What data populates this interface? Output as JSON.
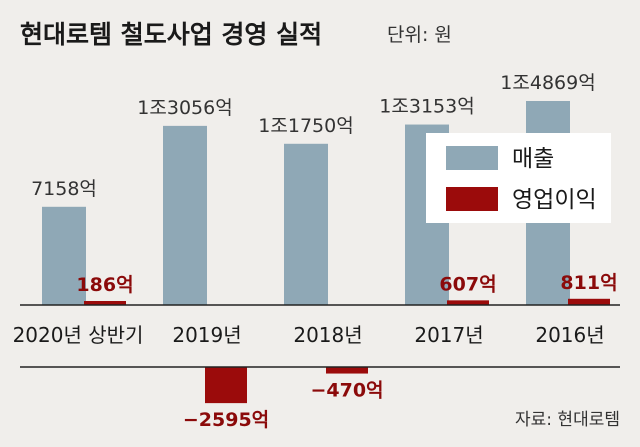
{
  "chart_data": {
    "type": "bar",
    "title": "현대로템 철도사업 경영 실적",
    "unit": "단위: 원",
    "categories": [
      "2020년 상반기",
      "2019년",
      "2018년",
      "2017년",
      "2016년"
    ],
    "series": [
      {
        "name": "매출",
        "color": "#8fa8b6",
        "values": [
          7158,
          13056,
          11750,
          13153,
          14869
        ],
        "labels": [
          "7158억",
          "1조3056억",
          "1조1750억",
          "1조3153억",
          "1조4869억"
        ]
      },
      {
        "name": "영업이익",
        "color": "#9b0b0b",
        "values": [
          186,
          -2595,
          -470,
          607,
          811
        ],
        "labels": [
          "186억",
          "−2595억",
          "−470억",
          "607억",
          "811억"
        ]
      }
    ],
    "legend": "top-right",
    "grid": false,
    "source": "자료: 현대로템"
  }
}
